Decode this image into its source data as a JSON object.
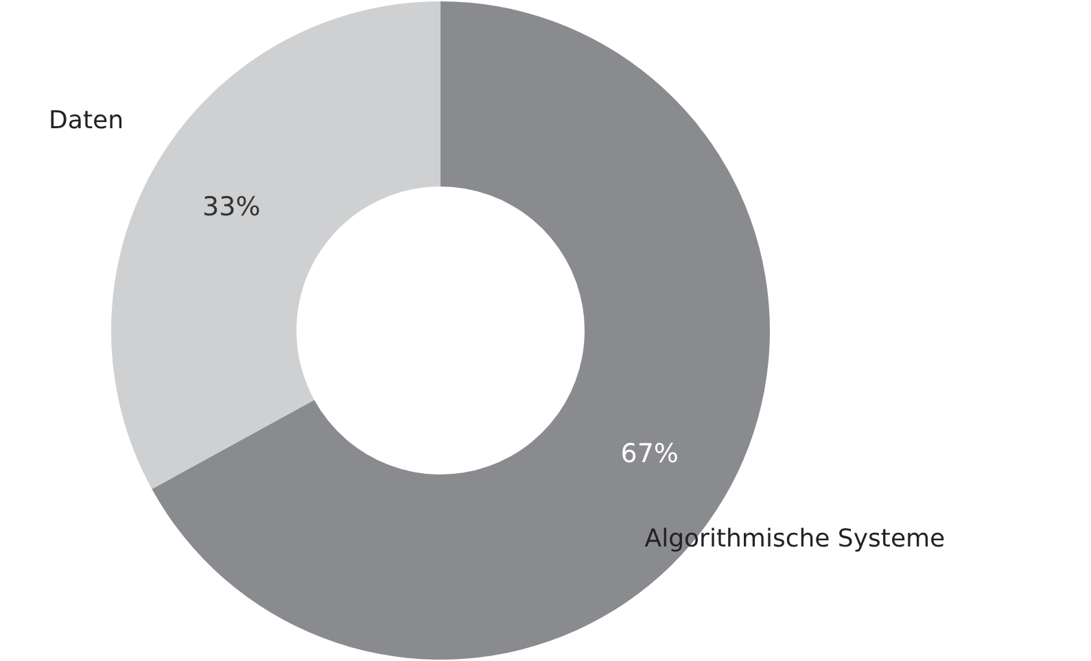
{
  "chart_data": {
    "type": "donut",
    "categories": [
      "Algorithmische Systeme",
      "Daten"
    ],
    "values": [
      67,
      33
    ],
    "colors": [
      "#8a8b8e",
      "#cfd0d2"
    ],
    "value_labels": [
      "67%",
      "33%"
    ]
  }
}
